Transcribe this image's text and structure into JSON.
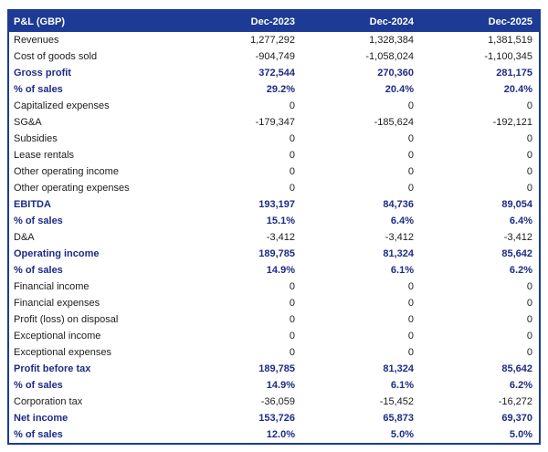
{
  "chart_data": {
    "type": "table",
    "title": "P&L (GBP)",
    "columns": [
      "Dec-2023",
      "Dec-2024",
      "Dec-2025"
    ],
    "rows": [
      {
        "label": "Revenues",
        "values": [
          "1,277,292",
          "1,328,384",
          "1,381,519"
        ],
        "bold": false
      },
      {
        "label": "Cost of goods sold",
        "values": [
          "-904,749",
          "-1,058,024",
          "-1,100,345"
        ],
        "bold": false
      },
      {
        "label": "Gross profit",
        "values": [
          "372,544",
          "270,360",
          "281,175"
        ],
        "bold": true
      },
      {
        "label": "% of sales",
        "values": [
          "29.2%",
          "20.4%",
          "20.4%"
        ],
        "bold": true
      },
      {
        "label": "Capitalized expenses",
        "values": [
          "0",
          "0",
          "0"
        ],
        "bold": false
      },
      {
        "label": "SG&A",
        "values": [
          "-179,347",
          "-185,624",
          "-192,121"
        ],
        "bold": false
      },
      {
        "label": "Subsidies",
        "values": [
          "0",
          "0",
          "0"
        ],
        "bold": false
      },
      {
        "label": "Lease rentals",
        "values": [
          "0",
          "0",
          "0"
        ],
        "bold": false
      },
      {
        "label": "Other operating income",
        "values": [
          "0",
          "0",
          "0"
        ],
        "bold": false
      },
      {
        "label": "Other operating expenses",
        "values": [
          "0",
          "0",
          "0"
        ],
        "bold": false
      },
      {
        "label": "EBITDA",
        "values": [
          "193,197",
          "84,736",
          "89,054"
        ],
        "bold": true
      },
      {
        "label": "% of sales",
        "values": [
          "15.1%",
          "6.4%",
          "6.4%"
        ],
        "bold": true
      },
      {
        "label": "D&A",
        "values": [
          "-3,412",
          "-3,412",
          "-3,412"
        ],
        "bold": false
      },
      {
        "label": "Operating income",
        "values": [
          "189,785",
          "81,324",
          "85,642"
        ],
        "bold": true
      },
      {
        "label": "% of sales",
        "values": [
          "14.9%",
          "6.1%",
          "6.2%"
        ],
        "bold": true
      },
      {
        "label": "Financial income",
        "values": [
          "0",
          "0",
          "0"
        ],
        "bold": false
      },
      {
        "label": "Financial expenses",
        "values": [
          "0",
          "0",
          "0"
        ],
        "bold": false
      },
      {
        "label": "Profit (loss) on disposal",
        "values": [
          "0",
          "0",
          "0"
        ],
        "bold": false
      },
      {
        "label": "Exceptional income",
        "values": [
          "0",
          "0",
          "0"
        ],
        "bold": false
      },
      {
        "label": "Exceptional expenses",
        "values": [
          "0",
          "0",
          "0"
        ],
        "bold": false
      },
      {
        "label": "Profit before tax",
        "values": [
          "189,785",
          "81,324",
          "85,642"
        ],
        "bold": true
      },
      {
        "label": "% of sales",
        "values": [
          "14.9%",
          "6.1%",
          "6.2%"
        ],
        "bold": true
      },
      {
        "label": "Corporation tax",
        "values": [
          "-36,059",
          "-15,452",
          "-16,272"
        ],
        "bold": false
      },
      {
        "label": "Net income",
        "values": [
          "153,726",
          "65,873",
          "69,370"
        ],
        "bold": true
      },
      {
        "label": "% of sales",
        "values": [
          "12.0%",
          "5.0%",
          "5.0%"
        ],
        "bold": true
      }
    ]
  },
  "colors": {
    "header_background": "#1d3b94",
    "table_border": "#1d3b94",
    "bold_row_text": "#1d2b87",
    "normal_row_text": "#1c1c1c",
    "header_text": "#ffffff",
    "row_background": "#ffffff"
  }
}
